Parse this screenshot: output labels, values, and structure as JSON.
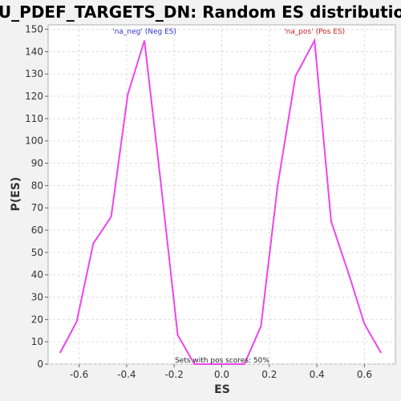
{
  "chart_data": {
    "type": "line",
    "title": "GU_PDEF_TARGETS_DN: Random ES distribution",
    "xlabel": "ES",
    "ylabel": "P(ES)",
    "xlim": [
      -0.73,
      0.73
    ],
    "ylim": [
      0,
      152
    ],
    "xticks": [
      -0.6,
      -0.4,
      -0.2,
      0.0,
      0.2,
      0.4,
      0.6
    ],
    "xtick_labels": [
      "-0.6",
      "-0.4",
      "-0.2",
      "0.0",
      "0.2",
      "0.4",
      "0.6"
    ],
    "yticks": [
      0,
      10,
      20,
      30,
      40,
      50,
      60,
      70,
      80,
      90,
      100,
      110,
      120,
      130,
      140,
      150
    ],
    "ytick_labels": [
      "0",
      "10",
      "20",
      "30",
      "40",
      "50",
      "60",
      "70",
      "80",
      "90",
      "100",
      "110",
      "120",
      "130",
      "140",
      "150"
    ],
    "grid": true,
    "series": [
      {
        "color": "#ee44ee",
        "x": [
          -0.68,
          -0.61,
          -0.54,
          -0.465,
          -0.395,
          -0.325,
          -0.255,
          -0.185,
          -0.115,
          -0.045,
          0.025,
          0.095,
          0.165,
          0.235,
          0.31,
          0.39,
          0.46,
          0.535,
          0.6,
          0.67
        ],
        "y": [
          5,
          19,
          54,
          66,
          121,
          145,
          80,
          13,
          0,
          0,
          0,
          0,
          17,
          80,
          129,
          145,
          64,
          40,
          18,
          5
        ]
      }
    ],
    "annotations": [
      {
        "text": "'na_neg' (Neg ES)",
        "x": -0.325,
        "y": 148,
        "color": "#3333cc"
      },
      {
        "text": "'na_pos' (Pos ES)",
        "x": 0.39,
        "y": 148,
        "color": "#cc2222"
      }
    ],
    "footnote": "Sets with pos scores: 50%"
  }
}
